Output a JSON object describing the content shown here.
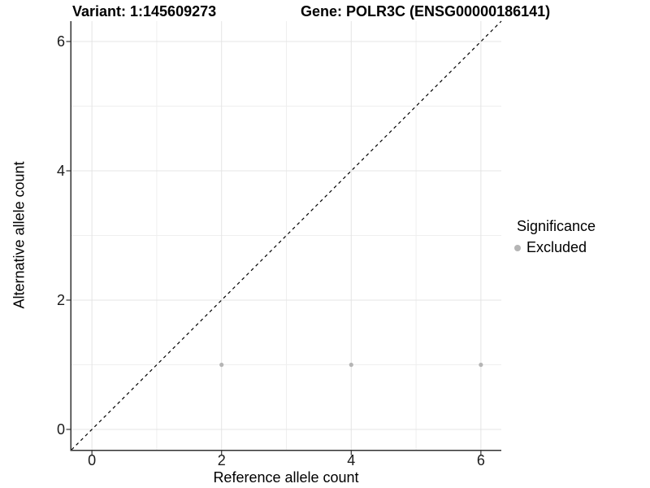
{
  "titles": {
    "variant": "Variant: 1:145609273",
    "gene": "Gene: POLR3C (ENSG00000186141)"
  },
  "legend": {
    "title": "Significance",
    "items": [
      {
        "label": "Excluded",
        "color": "#b5b5b5"
      }
    ]
  },
  "chart_data": {
    "type": "scatter",
    "xlabel": "Reference allele count",
    "ylabel": "Alternative allele count",
    "xlim": [
      -0.315,
      6.315
    ],
    "ylim": [
      -0.315,
      6.315
    ],
    "x_ticks": [
      0,
      2,
      4,
      6
    ],
    "y_ticks": [
      0,
      2,
      4,
      6
    ],
    "x_minor_ticks": [
      1,
      3,
      5
    ],
    "y_minor_ticks": [
      1,
      3,
      5
    ],
    "grid": true,
    "legend_position": "right",
    "series": [
      {
        "name": "Excluded",
        "color": "#b5b5b5",
        "points": [
          {
            "x": 2,
            "y": 1
          },
          {
            "x": 4,
            "y": 1
          },
          {
            "x": 6,
            "y": 1
          }
        ]
      }
    ],
    "reference_line": {
      "kind": "identity",
      "slope": 1,
      "intercept": 0,
      "style": "dashed",
      "color": "#000000"
    },
    "colors": {
      "major_grid": "#e4e4e4",
      "minor_grid": "#efefef",
      "axis_line": "#333333",
      "point": "#b5b5b5"
    }
  }
}
